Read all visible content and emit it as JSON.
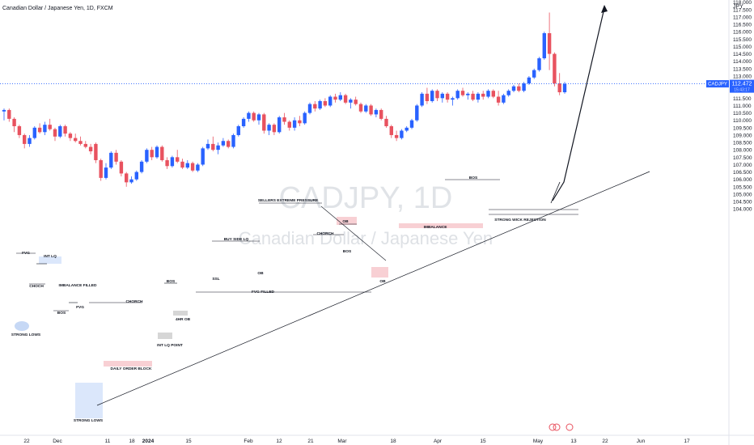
{
  "header": {
    "title": "Canadian Dollar / Japanese Yen, 1D, FXCM"
  },
  "watermark": {
    "symbol": "CADJPY, 1D",
    "name": "Canadian Dollar / Japanese Yen"
  },
  "price_axis": {
    "currency": "JPY"
  },
  "last_price": {
    "symbol": "CADJPY",
    "value": "112.472",
    "countdown": "15:43:17"
  },
  "colors": {
    "up": "#2962ff",
    "down": "#e8525f",
    "zone_blue": "#dbe7fb",
    "zone_red": "#f8d0d4",
    "zone_gray": "#d6d6d6",
    "badge": "#2962ff"
  },
  "chart_data": {
    "type": "candlestick",
    "symbol": "CADJPY",
    "timeframe": "1D",
    "ylim": [
      103.8,
      118.4
    ],
    "x_ticks": [
      "22",
      "Dec",
      "11",
      "18",
      "2024",
      "15",
      "Feb",
      "12",
      "21",
      "Mar",
      "18",
      "Apr",
      "15",
      "May",
      "13",
      "22",
      "Jun",
      "17"
    ],
    "y_ticks": [
      "104.000",
      "104.500",
      "105.000",
      "105.500",
      "106.000",
      "106.500",
      "107.000",
      "107.500",
      "108.000",
      "108.500",
      "109.000",
      "109.500",
      "110.000",
      "110.500",
      "111.000",
      "111.500",
      "112.000",
      "112.500",
      "113.000",
      "113.500",
      "114.000",
      "114.500",
      "115.000",
      "115.500",
      "116.000",
      "116.500",
      "117.000",
      "117.500",
      "118.000"
    ],
    "candles": [
      {
        "o": 110.6,
        "h": 110.8,
        "l": 110.0,
        "c": 110.7
      },
      {
        "o": 110.7,
        "h": 110.8,
        "l": 109.9,
        "c": 110.1
      },
      {
        "o": 110.1,
        "h": 110.2,
        "l": 109.2,
        "c": 109.6
      },
      {
        "o": 109.6,
        "h": 109.7,
        "l": 108.8,
        "c": 109.0
      },
      {
        "o": 109.0,
        "h": 109.1,
        "l": 108.1,
        "c": 108.4
      },
      {
        "o": 108.4,
        "h": 109.0,
        "l": 108.2,
        "c": 108.8
      },
      {
        "o": 108.8,
        "h": 109.6,
        "l": 108.7,
        "c": 109.5
      },
      {
        "o": 109.5,
        "h": 109.8,
        "l": 109.1,
        "c": 109.2
      },
      {
        "o": 109.2,
        "h": 109.9,
        "l": 109.0,
        "c": 109.7
      },
      {
        "o": 109.7,
        "h": 110.1,
        "l": 109.3,
        "c": 109.4
      },
      {
        "o": 109.4,
        "h": 109.5,
        "l": 108.6,
        "c": 108.9
      },
      {
        "o": 108.9,
        "h": 109.7,
        "l": 108.8,
        "c": 109.6
      },
      {
        "o": 109.6,
        "h": 109.7,
        "l": 108.9,
        "c": 109.1
      },
      {
        "o": 109.1,
        "h": 109.2,
        "l": 108.6,
        "c": 108.8
      },
      {
        "o": 108.8,
        "h": 109.1,
        "l": 108.5,
        "c": 108.6
      },
      {
        "o": 108.6,
        "h": 108.9,
        "l": 108.3,
        "c": 108.4
      },
      {
        "o": 108.4,
        "h": 108.6,
        "l": 108.1,
        "c": 108.2
      },
      {
        "o": 108.2,
        "h": 108.4,
        "l": 107.7,
        "c": 107.9
      },
      {
        "o": 108.4,
        "h": 108.5,
        "l": 107.1,
        "c": 107.3
      },
      {
        "o": 107.3,
        "h": 107.4,
        "l": 105.9,
        "c": 106.1
      },
      {
        "o": 106.1,
        "h": 107.1,
        "l": 106.0,
        "c": 106.8
      },
      {
        "o": 106.8,
        "h": 107.9,
        "l": 106.7,
        "c": 107.8
      },
      {
        "o": 107.8,
        "h": 108.0,
        "l": 107.0,
        "c": 107.2
      },
      {
        "o": 107.2,
        "h": 107.3,
        "l": 106.2,
        "c": 106.4
      },
      {
        "o": 106.4,
        "h": 106.5,
        "l": 105.5,
        "c": 105.8
      },
      {
        "o": 105.8,
        "h": 106.2,
        "l": 105.7,
        "c": 106.0
      },
      {
        "o": 106.0,
        "h": 106.6,
        "l": 105.9,
        "c": 106.5
      },
      {
        "o": 106.5,
        "h": 107.3,
        "l": 106.4,
        "c": 107.2
      },
      {
        "o": 107.2,
        "h": 108.1,
        "l": 107.1,
        "c": 108.0
      },
      {
        "o": 108.0,
        "h": 108.2,
        "l": 107.3,
        "c": 107.5
      },
      {
        "o": 107.5,
        "h": 108.3,
        "l": 107.4,
        "c": 108.2
      },
      {
        "o": 108.2,
        "h": 108.3,
        "l": 107.2,
        "c": 107.3
      },
      {
        "o": 107.3,
        "h": 107.5,
        "l": 106.7,
        "c": 106.9
      },
      {
        "o": 106.9,
        "h": 107.6,
        "l": 106.8,
        "c": 107.5
      },
      {
        "o": 107.5,
        "h": 108.0,
        "l": 107.1,
        "c": 107.2
      },
      {
        "o": 107.2,
        "h": 107.4,
        "l": 106.7,
        "c": 106.8
      },
      {
        "o": 106.8,
        "h": 107.3,
        "l": 106.7,
        "c": 107.1
      },
      {
        "o": 107.1,
        "h": 107.2,
        "l": 106.5,
        "c": 106.6
      },
      {
        "o": 106.6,
        "h": 107.1,
        "l": 106.5,
        "c": 107.0
      },
      {
        "o": 107.0,
        "h": 108.2,
        "l": 106.9,
        "c": 108.1
      },
      {
        "o": 108.1,
        "h": 108.7,
        "l": 108.0,
        "c": 108.4
      },
      {
        "o": 108.4,
        "h": 108.9,
        "l": 107.9,
        "c": 108.0
      },
      {
        "o": 108.0,
        "h": 108.5,
        "l": 107.7,
        "c": 108.3
      },
      {
        "o": 108.3,
        "h": 108.8,
        "l": 108.2,
        "c": 108.6
      },
      {
        "o": 108.6,
        "h": 108.7,
        "l": 108.1,
        "c": 108.2
      },
      {
        "o": 108.2,
        "h": 109.1,
        "l": 108.1,
        "c": 109.0
      },
      {
        "o": 109.0,
        "h": 109.7,
        "l": 108.9,
        "c": 109.6
      },
      {
        "o": 109.6,
        "h": 110.2,
        "l": 109.5,
        "c": 110.1
      },
      {
        "o": 110.1,
        "h": 110.6,
        "l": 109.9,
        "c": 110.5
      },
      {
        "o": 110.5,
        "h": 110.6,
        "l": 109.9,
        "c": 110.0
      },
      {
        "o": 110.0,
        "h": 110.5,
        "l": 109.7,
        "c": 110.4
      },
      {
        "o": 110.4,
        "h": 110.5,
        "l": 109.1,
        "c": 109.3
      },
      {
        "o": 109.3,
        "h": 109.8,
        "l": 109.0,
        "c": 109.7
      },
      {
        "o": 109.7,
        "h": 109.8,
        "l": 109.0,
        "c": 109.2
      },
      {
        "o": 109.2,
        "h": 110.3,
        "l": 109.1,
        "c": 110.2
      },
      {
        "o": 110.2,
        "h": 110.5,
        "l": 109.7,
        "c": 109.9
      },
      {
        "o": 109.9,
        "h": 110.0,
        "l": 109.3,
        "c": 109.5
      },
      {
        "o": 109.5,
        "h": 110.2,
        "l": 109.3,
        "c": 110.0
      },
      {
        "o": 110.0,
        "h": 110.3,
        "l": 109.6,
        "c": 109.8
      },
      {
        "o": 109.8,
        "h": 110.6,
        "l": 109.7,
        "c": 110.5
      },
      {
        "o": 110.5,
        "h": 111.2,
        "l": 110.4,
        "c": 111.1
      },
      {
        "o": 111.1,
        "h": 111.3,
        "l": 110.6,
        "c": 110.8
      },
      {
        "o": 110.8,
        "h": 111.4,
        "l": 110.7,
        "c": 111.3
      },
      {
        "o": 111.3,
        "h": 111.5,
        "l": 110.9,
        "c": 111.0
      },
      {
        "o": 111.0,
        "h": 111.7,
        "l": 110.9,
        "c": 111.6
      },
      {
        "o": 111.6,
        "h": 111.8,
        "l": 111.2,
        "c": 111.4
      },
      {
        "o": 111.4,
        "h": 111.9,
        "l": 111.3,
        "c": 111.7
      },
      {
        "o": 111.7,
        "h": 111.8,
        "l": 111.1,
        "c": 111.2
      },
      {
        "o": 111.2,
        "h": 111.5,
        "l": 110.8,
        "c": 111.4
      },
      {
        "o": 111.4,
        "h": 111.6,
        "l": 111.0,
        "c": 111.1
      },
      {
        "o": 111.1,
        "h": 111.2,
        "l": 110.5,
        "c": 110.6
      },
      {
        "o": 110.6,
        "h": 111.1,
        "l": 110.5,
        "c": 111.0
      },
      {
        "o": 111.0,
        "h": 111.1,
        "l": 110.3,
        "c": 110.4
      },
      {
        "o": 110.4,
        "h": 110.8,
        "l": 110.2,
        "c": 110.7
      },
      {
        "o": 110.7,
        "h": 110.8,
        "l": 110.0,
        "c": 110.1
      },
      {
        "o": 110.1,
        "h": 110.3,
        "l": 109.5,
        "c": 109.6
      },
      {
        "o": 109.6,
        "h": 109.7,
        "l": 108.8,
        "c": 109.0
      },
      {
        "o": 109.0,
        "h": 109.3,
        "l": 108.6,
        "c": 108.8
      },
      {
        "o": 108.8,
        "h": 109.4,
        "l": 108.7,
        "c": 109.3
      },
      {
        "o": 109.3,
        "h": 109.6,
        "l": 109.2,
        "c": 109.5
      },
      {
        "o": 109.5,
        "h": 110.1,
        "l": 109.4,
        "c": 110.0
      },
      {
        "o": 110.0,
        "h": 111.1,
        "l": 109.9,
        "c": 111.0
      },
      {
        "o": 111.0,
        "h": 111.9,
        "l": 110.9,
        "c": 111.8
      },
      {
        "o": 111.8,
        "h": 112.2,
        "l": 111.1,
        "c": 111.3
      },
      {
        "o": 111.3,
        "h": 112.1,
        "l": 111.2,
        "c": 112.0
      },
      {
        "o": 112.0,
        "h": 112.1,
        "l": 111.3,
        "c": 111.5
      },
      {
        "o": 111.5,
        "h": 111.9,
        "l": 111.2,
        "c": 111.8
      },
      {
        "o": 111.8,
        "h": 111.9,
        "l": 111.2,
        "c": 111.4
      },
      {
        "o": 111.4,
        "h": 111.6,
        "l": 111.0,
        "c": 111.5
      },
      {
        "o": 111.5,
        "h": 112.1,
        "l": 111.4,
        "c": 112.0
      },
      {
        "o": 112.0,
        "h": 112.2,
        "l": 111.6,
        "c": 111.7
      },
      {
        "o": 111.7,
        "h": 111.9,
        "l": 111.4,
        "c": 111.8
      },
      {
        "o": 111.8,
        "h": 112.0,
        "l": 111.3,
        "c": 111.4
      },
      {
        "o": 111.4,
        "h": 111.9,
        "l": 111.2,
        "c": 111.8
      },
      {
        "o": 111.8,
        "h": 112.0,
        "l": 111.4,
        "c": 111.6
      },
      {
        "o": 111.6,
        "h": 112.1,
        "l": 111.5,
        "c": 112.0
      },
      {
        "o": 112.0,
        "h": 112.1,
        "l": 111.5,
        "c": 111.6
      },
      {
        "o": 111.6,
        "h": 112.0,
        "l": 111.0,
        "c": 111.2
      },
      {
        "o": 111.2,
        "h": 111.8,
        "l": 111.1,
        "c": 111.7
      },
      {
        "o": 111.7,
        "h": 112.1,
        "l": 111.6,
        "c": 112.0
      },
      {
        "o": 112.0,
        "h": 112.4,
        "l": 111.9,
        "c": 112.3
      },
      {
        "o": 112.3,
        "h": 112.5,
        "l": 111.9,
        "c": 112.0
      },
      {
        "o": 112.0,
        "h": 112.6,
        "l": 111.9,
        "c": 112.5
      },
      {
        "o": 112.5,
        "h": 113.0,
        "l": 112.4,
        "c": 112.9
      },
      {
        "o": 112.9,
        "h": 113.5,
        "l": 112.8,
        "c": 113.4
      },
      {
        "o": 113.4,
        "h": 114.3,
        "l": 113.3,
        "c": 114.2
      },
      {
        "o": 114.2,
        "h": 116.0,
        "l": 114.1,
        "c": 115.9
      },
      {
        "o": 115.9,
        "h": 117.3,
        "l": 113.4,
        "c": 114.5
      },
      {
        "o": 114.5,
        "h": 114.6,
        "l": 112.3,
        "c": 112.5
      },
      {
        "o": 112.5,
        "h": 113.2,
        "l": 111.7,
        "c": 111.9
      },
      {
        "o": 111.9,
        "h": 112.6,
        "l": 111.8,
        "c": 112.472
      }
    ],
    "annotations": [
      "FVG",
      "INT LQ",
      "CHOCH",
      "BOS",
      "IMBALANCE FILLED",
      "FVG",
      "STRONG LOWS",
      "STRONG LOWS",
      "CHORCH",
      "DAILY ORDER BLOCK",
      "INT LQ POINT",
      "4HR OB",
      "BOS",
      "BUY SIDE LQ",
      "SSL",
      "OB",
      "FVG FILLED",
      "SELLERS EXTREME PRESSURE",
      "CHORCH",
      "OB",
      "BOS",
      "OB",
      "IMBALANCE",
      "BOS",
      "STRONG WICK REJECTION"
    ]
  }
}
